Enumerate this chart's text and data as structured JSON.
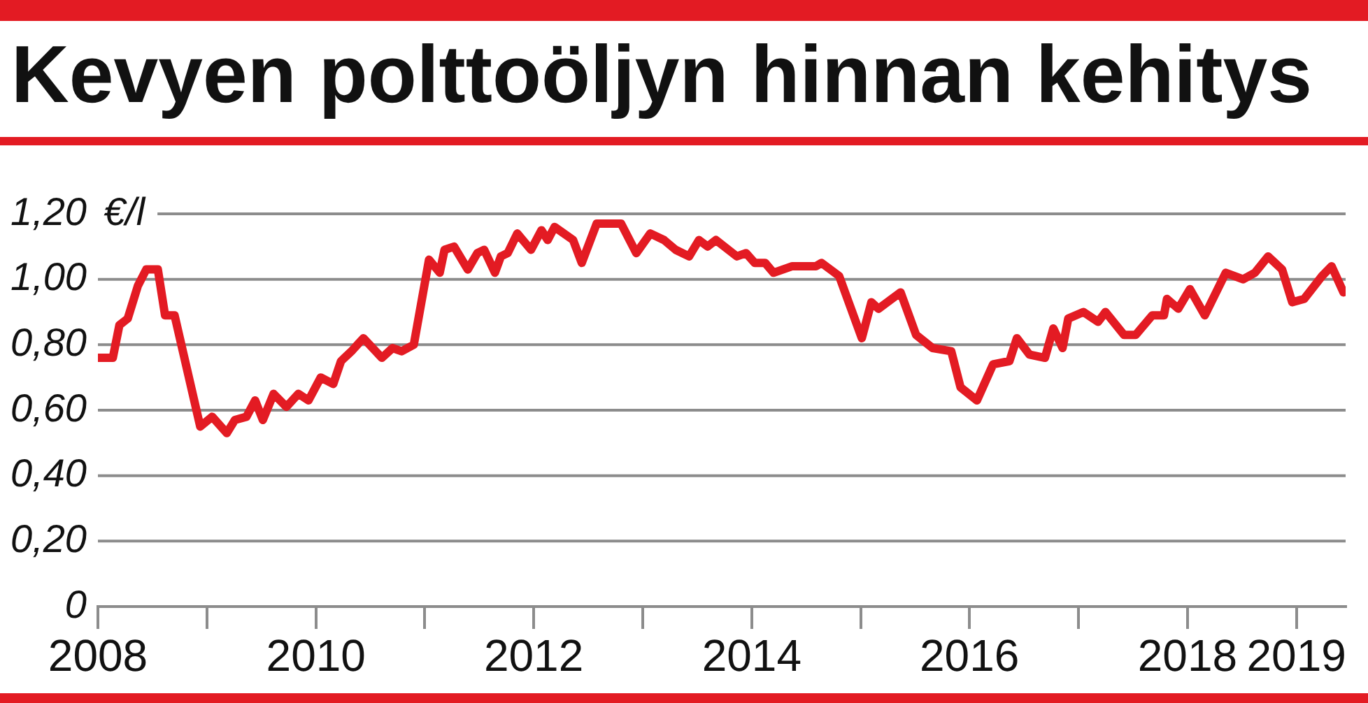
{
  "chart_data": {
    "type": "line",
    "title": "Kevyen polttoöljyn hinnan kehitys",
    "ylabel": "€/l",
    "x": [
      "2008-01-01",
      "2008-02-20",
      "2008-03-13",
      "2008-04-10",
      "2008-05-14",
      "2008-06-11",
      "2008-07-20",
      "2008-08-13",
      "2008-09-14",
      "2008-12-09",
      "2009-01-18",
      "2009-03-08",
      "2009-04-04",
      "2009-05-13",
      "2009-06-11",
      "2009-07-07",
      "2009-08-12",
      "2009-09-24",
      "2009-11-03",
      "2009-12-07",
      "2010-01-17",
      "2010-02-28",
      "2010-03-26",
      "2010-04-30",
      "2010-06-09",
      "2010-08-10",
      "2010-09-15",
      "2010-10-15",
      "2010-11-25",
      "2011-01-15",
      "2011-02-20",
      "2011-03-08",
      "2011-04-09",
      "2011-05-25",
      "2011-06-26",
      "2011-07-19",
      "2011-08-24",
      "2011-09-13",
      "2011-10-06",
      "2011-11-07",
      "2011-12-23",
      "2012-01-27",
      "2012-02-17",
      "2012-03-11",
      "2012-05-12",
      "2012-06-10",
      "2012-07-30",
      "2012-10-20",
      "2012-12-10",
      "2013-01-26",
      "2013-03-13",
      "2013-04-21",
      "2013-06-05",
      "2013-07-08",
      "2013-08-06",
      "2013-09-03",
      "2013-11-12",
      "2013-12-13",
      "2014-01-11",
      "2014-02-15",
      "2014-03-15",
      "2014-05-17",
      "2014-08-04",
      "2014-08-23",
      "2014-10-21",
      "2014-11-22",
      "2015-01-05",
      "2015-02-06",
      "2015-03-02",
      "2015-05-15",
      "2015-07-06",
      "2015-08-30",
      "2015-11-01",
      "2015-12-02",
      "2016-01-26",
      "2016-03-20",
      "2016-05-14",
      "2016-06-08",
      "2016-07-20",
      "2016-09-10",
      "2016-10-08",
      "2016-11-08",
      "2016-11-27",
      "2017-01-17",
      "2017-03-07",
      "2017-04-01",
      "2017-06-02",
      "2017-07-11",
      "2017-09-05",
      "2017-10-14",
      "2017-10-24",
      "2017-12-01",
      "2018-01-09",
      "2018-02-28",
      "2018-05-09",
      "2018-07-06",
      "2018-08-15",
      "2018-09-28",
      "2018-11-14",
      "2018-12-18",
      "2019-01-27",
      "2019-03-28",
      "2019-04-29",
      "2019-06-08"
    ],
    "values": [
      0.76,
      0.76,
      0.86,
      0.88,
      0.98,
      1.03,
      1.03,
      0.89,
      0.89,
      0.55,
      0.58,
      0.53,
      0.57,
      0.58,
      0.63,
      0.57,
      0.65,
      0.61,
      0.65,
      0.63,
      0.7,
      0.68,
      0.75,
      0.78,
      0.82,
      0.76,
      0.79,
      0.78,
      0.8,
      1.06,
      1.02,
      1.09,
      1.1,
      1.03,
      1.08,
      1.09,
      1.02,
      1.07,
      1.08,
      1.14,
      1.09,
      1.15,
      1.12,
      1.16,
      1.12,
      1.05,
      1.17,
      1.17,
      1.08,
      1.14,
      1.12,
      1.09,
      1.07,
      1.12,
      1.1,
      1.12,
      1.07,
      1.08,
      1.05,
      1.05,
      1.02,
      1.04,
      1.04,
      1.05,
      1.01,
      0.93,
      0.82,
      0.93,
      0.91,
      0.96,
      0.83,
      0.79,
      0.78,
      0.67,
      0.63,
      0.74,
      0.75,
      0.82,
      0.77,
      0.76,
      0.85,
      0.79,
      0.88,
      0.9,
      0.87,
      0.9,
      0.83,
      0.83,
      0.89,
      0.89,
      0.94,
      0.91,
      0.97,
      0.89,
      1.02,
      1.0,
      1.02,
      1.07,
      1.03,
      0.93,
      0.94,
      1.01,
      1.04,
      0.96
    ],
    "color": "#e31b23",
    "xlim": [
      "2008-01-01",
      "2019-06-15"
    ],
    "xticks": [
      "2008",
      {
        "value": "2009",
        "label": null
      },
      "2010",
      {
        "value": "2011",
        "label": null
      },
      "2012",
      {
        "value": "2013",
        "label": null
      },
      "2014",
      {
        "value": "2015",
        "label": null
      },
      "2016",
      {
        "value": "2017",
        "label": null
      },
      "2018",
      "2019"
    ],
    "ylim": [
      0,
      1.2
    ],
    "yticks": [
      0,
      {
        "value": 0.2,
        "label": "0,20"
      },
      {
        "value": 0.4,
        "label": "0,40"
      },
      {
        "value": 0.6,
        "label": "0,60"
      },
      {
        "value": 0.8,
        "label": "0,80"
      },
      {
        "value": 1.0,
        "label": "1,00"
      },
      {
        "value": 1.2,
        "label": "1,20"
      }
    ],
    "grid": "y",
    "line_style": "solid"
  }
}
